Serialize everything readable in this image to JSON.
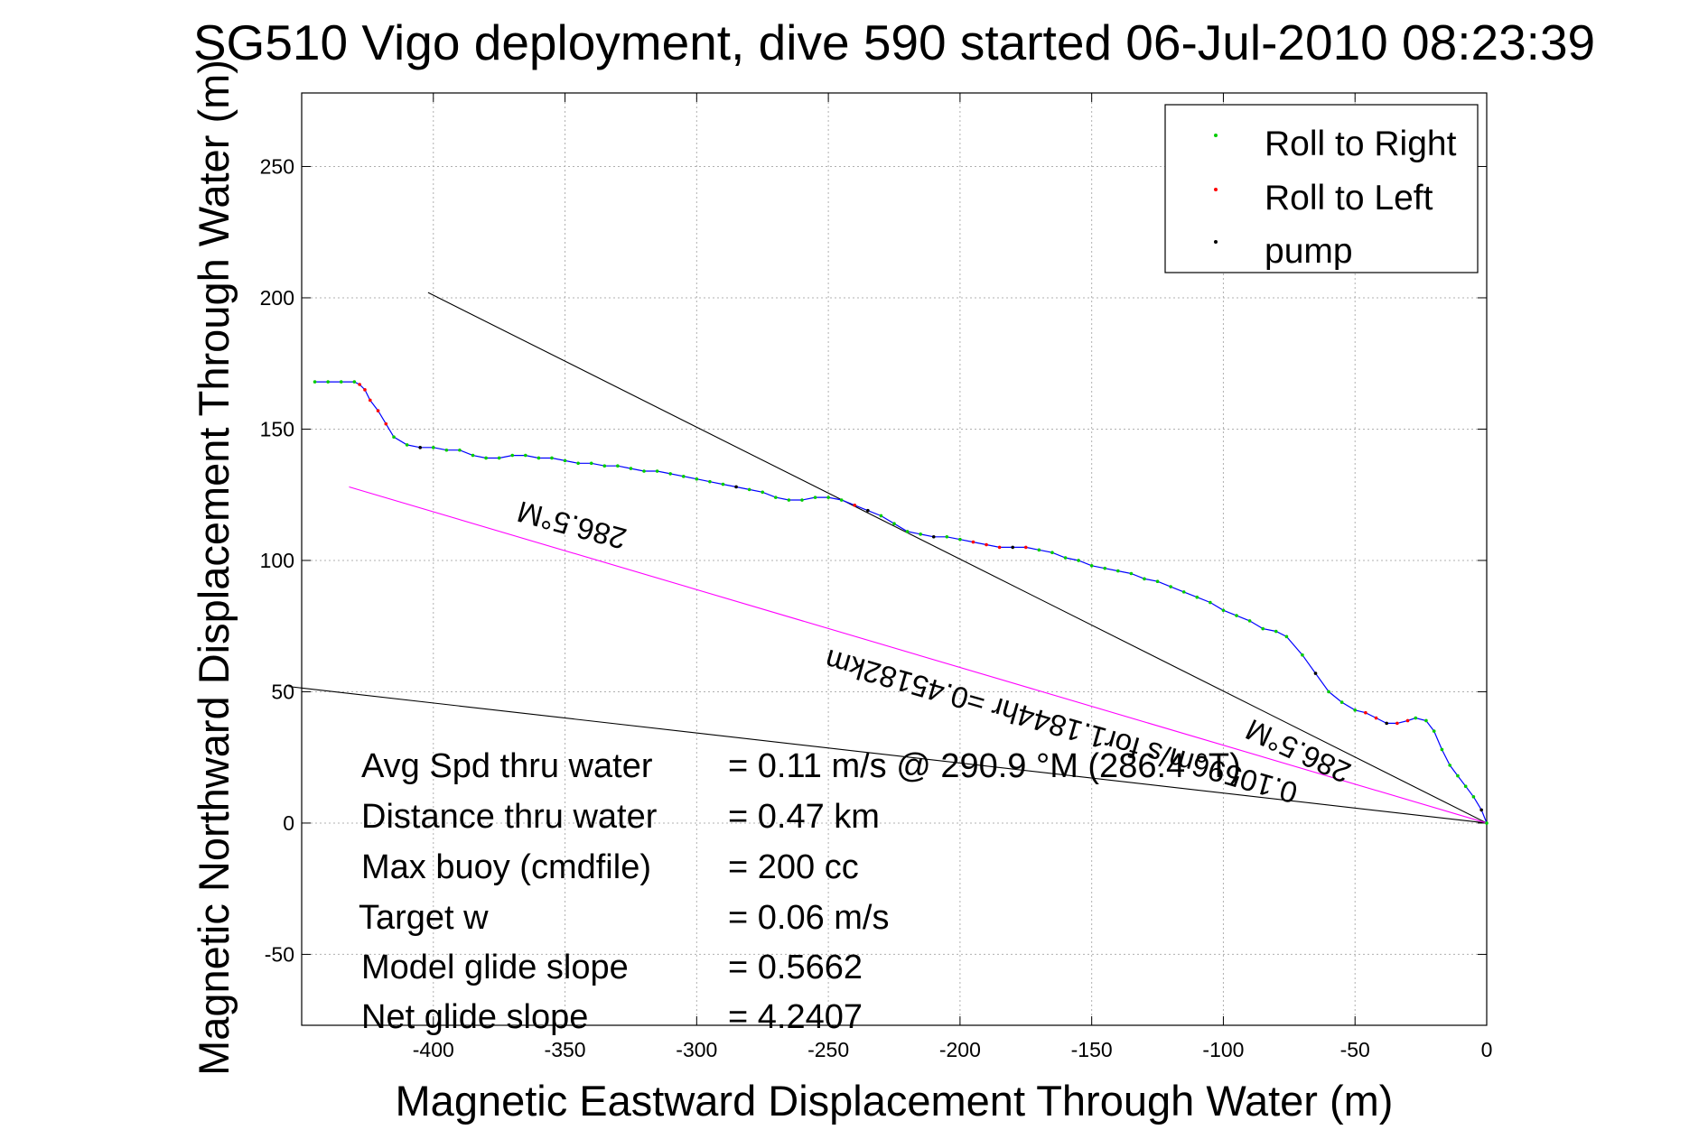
{
  "chart_data": {
    "type": "line",
    "title": "SG510 Vigo deployment, dive 590 started 06-Jul-2010 08:23:39",
    "xlabel": "Magnetic Eastward Displacement Through Water (m)",
    "ylabel": "Magnetic Northward Displacement Through Water (m)",
    "xlim": [
      -450,
      0
    ],
    "ylim": [
      -77,
      278
    ],
    "xticks": [
      -400,
      -350,
      -300,
      -250,
      -200,
      -150,
      -100,
      -50,
      0
    ],
    "yticks": [
      -50,
      0,
      50,
      100,
      150,
      200,
      250
    ],
    "grid": true,
    "legend_position": "top-right",
    "legend": [
      {
        "label": "Roll to Right",
        "color": "#00cc00"
      },
      {
        "label": "Roll to Left",
        "color": "#ff0000"
      },
      {
        "label": "pump",
        "color": "#000000"
      }
    ],
    "track": {
      "color": "#0000ff",
      "x": [
        0,
        -2,
        -5,
        -8,
        -11,
        -14,
        -17,
        -20,
        -23,
        -27,
        -30,
        -34,
        -38,
        -42,
        -46,
        -50,
        -55,
        -60,
        -65,
        -70,
        -76,
        -80,
        -85,
        -90,
        -95,
        -100,
        -105,
        -110,
        -115,
        -120,
        -125,
        -130,
        -135,
        -140,
        -145,
        -150,
        -155,
        -160,
        -165,
        -170,
        -175,
        -180,
        -185,
        -190,
        -195,
        -200,
        -205,
        -210,
        -215,
        -220,
        -225,
        -230,
        -235,
        -240,
        -245,
        -250,
        -255,
        -260,
        -265,
        -270,
        -275,
        -280,
        -285,
        -290,
        -295,
        -300,
        -305,
        -310,
        -315,
        -320,
        -325,
        -330,
        -335,
        -340,
        -345,
        -350,
        -355,
        -360,
        -365,
        -370,
        -375,
        -380,
        -385,
        -390,
        -395,
        -400,
        -405,
        -410,
        -415,
        -418,
        -421,
        -424,
        -426,
        -428,
        -430,
        -435,
        -440,
        -445
      ],
      "y": [
        0,
        5,
        10,
        14,
        18,
        22,
        28,
        35,
        39,
        40,
        39,
        38,
        38,
        40,
        42,
        43,
        46,
        50,
        57,
        64,
        71,
        73,
        74,
        77,
        79,
        81,
        84,
        86,
        88,
        90,
        92,
        93,
        95,
        96,
        97,
        98,
        100,
        101,
        103,
        104,
        105,
        105,
        105,
        106,
        107,
        108,
        109,
        109,
        110,
        111,
        114,
        117,
        119,
        121,
        123,
        124,
        124,
        123,
        123,
        124,
        126,
        127,
        128,
        129,
        130,
        131,
        132,
        133,
        134,
        134,
        135,
        136,
        136,
        137,
        137,
        138,
        139,
        139,
        140,
        140,
        139,
        139,
        140,
        142,
        142,
        143,
        143,
        144,
        147,
        152,
        157,
        161,
        165,
        167,
        168,
        168,
        168,
        168
      ]
    },
    "pump_indices": [
      1,
      12,
      18,
      41,
      47,
      52,
      62,
      86
    ],
    "left_ranges": [
      [
        10,
        14
      ],
      [
        40,
        44
      ],
      [
        52,
        53
      ],
      [
        89,
        93
      ]
    ],
    "reference_lines": [
      {
        "name": "black-line-upper",
        "color": "#000000",
        "x": [
          0,
          -402
        ],
        "y": [
          0,
          202
        ]
      },
      {
        "name": "black-line-lower",
        "color": "#000000",
        "x": [
          0,
          -455
        ],
        "y": [
          0,
          52
        ]
      },
      {
        "name": "magenta-line",
        "color": "#ff00ff",
        "x": [
          0,
          -432
        ],
        "y": [
          0,
          128
        ]
      }
    ]
  },
  "annotations": {
    "heading_upper": "286.5°M",
    "heading_lower": "286.5°M",
    "speed_line": "0.10596m/s for1.1844hr =0.45182km"
  },
  "stats": [
    {
      "label": "Avg Spd thru water",
      "value": "=  0.11 m/s @ 290.9 °M (286.4 °T)"
    },
    {
      "label": "Distance thru water",
      "value": "=  0.47 km"
    },
    {
      "label": "Max buoy (cmdfile)",
      "value": "= 200 cc"
    },
    {
      "label": "Target w",
      "value": "= 0.06 m/s"
    },
    {
      "label": "Model glide slope",
      "value": "= 0.5662"
    },
    {
      "label": "Net glide slope",
      "value": "= 4.2407"
    }
  ]
}
